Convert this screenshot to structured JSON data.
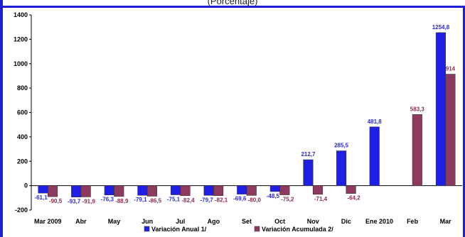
{
  "header": {
    "subtitle": "(Porcentaje)"
  },
  "colors": {
    "series1": "#1f1fe6",
    "series2": "#8e3a5e",
    "frame": "#1f1fd6"
  },
  "chart_data": {
    "type": "bar",
    "title": "",
    "subtitle": "(Porcentaje)",
    "xlabel": "",
    "ylabel": "",
    "ylim": [
      -200,
      1400
    ],
    "yticks": [
      -200,
      0,
      200,
      400,
      600,
      800,
      1000,
      1200,
      1400
    ],
    "grid": false,
    "legend": "bottom",
    "categories": [
      "Mar 2009",
      "Abr",
      "May",
      "Jun",
      "Jul",
      "Ago",
      "Set",
      "Oct",
      "Nov",
      "Dic",
      "Ene 2010",
      "Feb",
      "Mar"
    ],
    "series": [
      {
        "name": "Variación Anual 1/",
        "values": [
          -61.1,
          -93.7,
          -76.3,
          -79.1,
          -75.1,
          -79.7,
          -69.6,
          -48.5,
          212.7,
          285.5,
          481.8,
          null,
          1254.8
        ],
        "labels": [
          "-61,1",
          "-93,7",
          "-76,3",
          "-79,1",
          "-75,1",
          "-79,7",
          "-69,6",
          "-48,5",
          "212,7",
          "285,5",
          "481,8",
          "",
          "1254,8"
        ]
      },
      {
        "name": "Variación Acumulada 2/",
        "values": [
          -90.5,
          -91.9,
          -88.9,
          -86.5,
          -82.4,
          -82.1,
          -80.0,
          -75.2,
          -71.4,
          -64.2,
          null,
          583.3,
          914
        ],
        "labels": [
          "-90,5",
          "-91,9",
          "-88,9",
          "-86,5",
          "-82,4",
          "-82,1",
          "-80,0",
          "-75,2",
          "-71,4",
          "-64,2",
          "",
          "583,3",
          "914"
        ]
      }
    ]
  }
}
